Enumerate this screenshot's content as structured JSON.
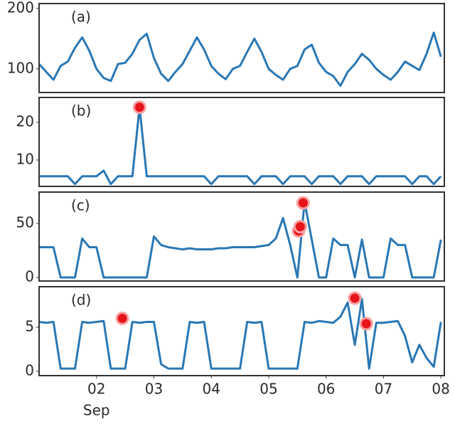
{
  "chart_data": [
    {
      "type": "line",
      "label": "(a)",
      "color": "#2a77b4",
      "x": [
        1,
        1.125,
        1.25,
        1.375,
        1.5,
        1.625,
        1.75,
        1.875,
        2,
        2.125,
        2.25,
        2.375,
        2.5,
        2.625,
        2.75,
        2.875,
        3,
        3.125,
        3.25,
        3.375,
        3.5,
        3.625,
        3.75,
        3.875,
        4,
        4.125,
        4.25,
        4.375,
        4.5,
        4.625,
        4.75,
        4.875,
        5,
        5.125,
        5.25,
        5.375,
        5.5,
        5.625,
        5.75,
        5.875,
        6,
        6.125,
        6.25,
        6.375,
        6.5,
        6.625,
        6.75,
        6.875,
        7,
        7.125,
        7.25,
        7.375,
        7.5,
        7.625,
        7.75,
        7.875,
        8
      ],
      "values": [
        108,
        95,
        82,
        105,
        112,
        135,
        152,
        130,
        100,
        85,
        80,
        108,
        110,
        125,
        148,
        158,
        118,
        92,
        80,
        95,
        108,
        130,
        152,
        132,
        105,
        92,
        83,
        100,
        105,
        128,
        150,
        128,
        100,
        90,
        82,
        100,
        105,
        132,
        140,
        110,
        95,
        88,
        72,
        95,
        108,
        125,
        115,
        100,
        90,
        82,
        95,
        112,
        105,
        98,
        125,
        160,
        120
      ],
      "xlim": [
        1,
        8.06
      ],
      "ylim": [
        61,
        208
      ],
      "yticks": [
        100,
        200
      ]
    },
    {
      "type": "line",
      "label": "(b)",
      "color": "#2a77b4",
      "x": [
        1,
        1.125,
        1.25,
        1.375,
        1.5,
        1.625,
        1.75,
        1.875,
        2,
        2.125,
        2.25,
        2.375,
        2.5,
        2.625,
        2.75,
        2.875,
        3,
        3.125,
        3.25,
        3.375,
        3.5,
        3.625,
        3.75,
        3.875,
        4,
        4.125,
        4.25,
        4.375,
        4.5,
        4.625,
        4.75,
        4.875,
        5,
        5.125,
        5.25,
        5.375,
        5.5,
        5.625,
        5.75,
        5.875,
        6,
        6.125,
        6.25,
        6.375,
        6.5,
        6.625,
        6.75,
        6.875,
        7,
        7.125,
        7.25,
        7.375,
        7.5,
        7.625,
        7.75,
        7.875,
        8
      ],
      "values": [
        5.7,
        5.7,
        5.7,
        5.7,
        5.7,
        3.6,
        5.7,
        5.7,
        5.7,
        7.2,
        3.6,
        5.7,
        5.7,
        5.7,
        24,
        5.7,
        5.7,
        5.7,
        5.7,
        5.7,
        5.7,
        5.7,
        5.7,
        5.7,
        3.6,
        5.7,
        5.7,
        5.7,
        5.7,
        5.7,
        3.6,
        5.7,
        5.7,
        5.7,
        3.6,
        5.7,
        5.7,
        5.7,
        3.6,
        5.7,
        5.7,
        5.7,
        3.6,
        5.7,
        5.7,
        5.7,
        3.6,
        5.7,
        5.7,
        5.7,
        5.7,
        5.7,
        3.6,
        5.7,
        5.7,
        3.6,
        5.7
      ],
      "anomalies": {
        "color": "#e8141b",
        "x": [
          2.75
        ],
        "values": [
          24
        ]
      },
      "xlim": [
        1,
        8.06
      ],
      "ylim": [
        3,
        26.6
      ],
      "yticks": [
        10,
        20
      ]
    },
    {
      "type": "line",
      "label": "(c)",
      "color": "#2a77b4",
      "x": [
        1,
        1.125,
        1.25,
        1.375,
        1.5,
        1.625,
        1.75,
        1.875,
        2,
        2.125,
        2.25,
        2.375,
        2.5,
        2.625,
        2.75,
        2.875,
        3,
        3.125,
        3.25,
        3.375,
        3.5,
        3.625,
        3.75,
        3.875,
        4,
        4.125,
        4.25,
        4.375,
        4.5,
        4.625,
        4.75,
        4.875,
        5,
        5.125,
        5.25,
        5.375,
        5.5,
        5.625,
        5.75,
        5.875,
        6,
        6.125,
        6.25,
        6.375,
        6.5,
        6.625,
        6.75,
        6.875,
        7,
        7.125,
        7.25,
        7.375,
        7.5,
        7.625,
        7.75,
        7.875,
        8
      ],
      "values": [
        28,
        28,
        28,
        0,
        0,
        0,
        36,
        28,
        28,
        0,
        0,
        0,
        0,
        0,
        0,
        0,
        38,
        30,
        28,
        27,
        26,
        27,
        26,
        26,
        26,
        27,
        27,
        28,
        28,
        28,
        28,
        29,
        30,
        36,
        55,
        30,
        0,
        70,
        35,
        0,
        0,
        36,
        30,
        30,
        0,
        35,
        0,
        0,
        0,
        36,
        30,
        30,
        0,
        0,
        0,
        0,
        35
      ],
      "anomalies": {
        "color": "#e8141b",
        "x": [
          5.52,
          5.55,
          5.6
        ],
        "values": [
          43,
          47,
          69
        ]
      },
      "xlim": [
        1,
        8.06
      ],
      "ylim": [
        -3.3,
        79
      ],
      "yticks": [
        0,
        50
      ]
    },
    {
      "type": "line",
      "label": "(d)",
      "color": "#2a77b4",
      "x": [
        1,
        1.125,
        1.25,
        1.375,
        1.5,
        1.625,
        1.75,
        1.875,
        2,
        2.125,
        2.25,
        2.375,
        2.5,
        2.625,
        2.75,
        2.875,
        3,
        3.125,
        3.25,
        3.375,
        3.5,
        3.625,
        3.75,
        3.875,
        4,
        4.125,
        4.25,
        4.375,
        4.5,
        4.625,
        4.75,
        4.875,
        5,
        5.125,
        5.25,
        5.375,
        5.5,
        5.625,
        5.75,
        5.875,
        6,
        6.125,
        6.25,
        6.375,
        6.5,
        6.625,
        6.75,
        6.875,
        7,
        7.125,
        7.25,
        7.375,
        7.5,
        7.625,
        7.75,
        7.875,
        8
      ],
      "values": [
        5.6,
        5.5,
        5.6,
        0.3,
        0.3,
        0.3,
        5.6,
        5.5,
        5.6,
        5.7,
        0.3,
        0.3,
        0.3,
        5.6,
        5.5,
        5.6,
        5.6,
        0.8,
        0.3,
        0.3,
        0.3,
        5.6,
        5.5,
        5.6,
        0.3,
        0.3,
        0.3,
        0.3,
        0.3,
        5.6,
        5.5,
        5.6,
        0.3,
        0.3,
        0.3,
        0.3,
        0.3,
        5.6,
        5.5,
        5.7,
        5.6,
        5.5,
        6.2,
        7.8,
        3,
        8.2,
        0.3,
        5.5,
        5.5,
        5.6,
        5.7,
        4,
        1,
        3,
        1.5,
        0.5,
        5.6
      ],
      "anomalies": {
        "color": "#e8141b",
        "x": [
          2.45,
          6.5,
          6.7
        ],
        "values": [
          6,
          8.3,
          5.4
        ]
      },
      "xlim": [
        1,
        8.06
      ],
      "ylim": [
        -0.5,
        9.6
      ],
      "yticks": [
        0,
        5
      ],
      "xticks": [
        {
          "value": 2,
          "label": "02"
        },
        {
          "value": 3,
          "label": "03"
        },
        {
          "value": 4,
          "label": "04"
        },
        {
          "value": 5,
          "label": "05"
        },
        {
          "value": 6,
          "label": "06"
        },
        {
          "value": 7,
          "label": "07"
        },
        {
          "value": 8,
          "label": "08"
        }
      ],
      "xlabel": "Sep"
    }
  ]
}
